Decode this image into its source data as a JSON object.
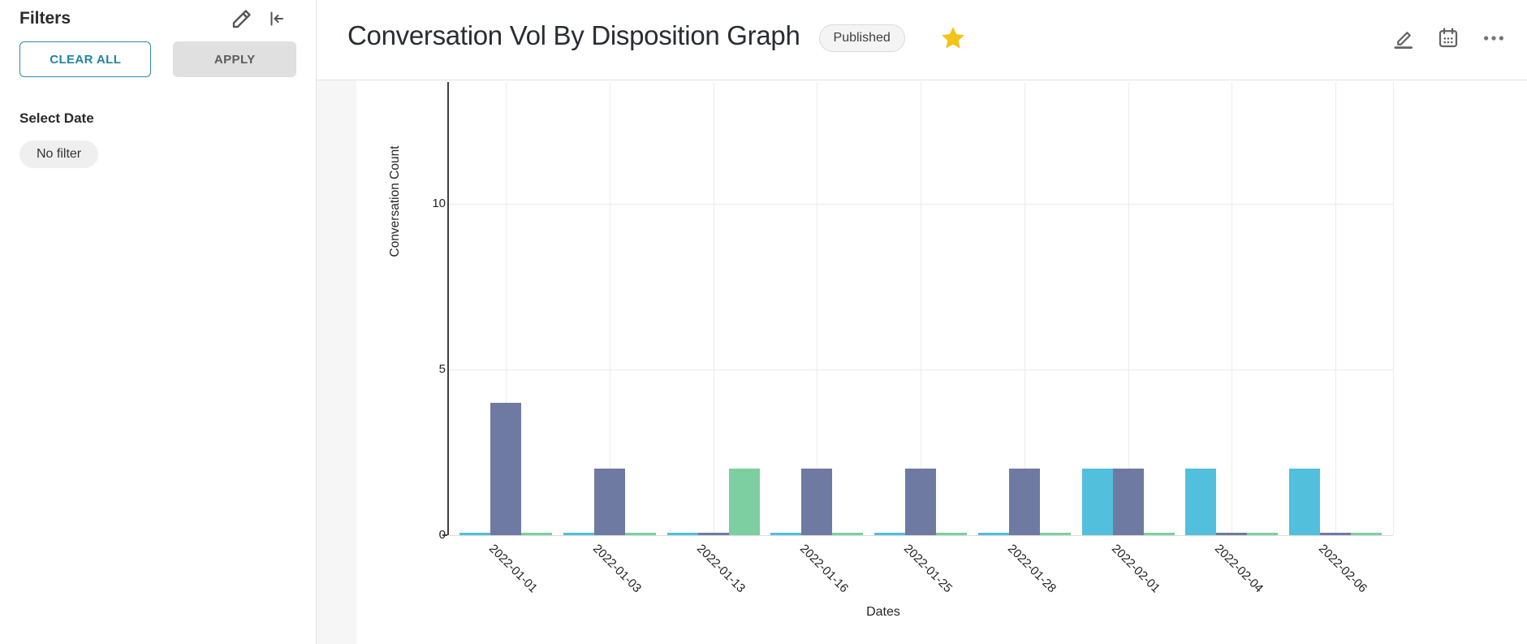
{
  "sidebar": {
    "title": "Filters",
    "clear_all_label": "CLEAR ALL",
    "apply_label": "APPLY",
    "select_date_label": "Select Date",
    "no_filter_label": "No filter",
    "icons": [
      "pencil-icon",
      "collapse-left-icon"
    ]
  },
  "header": {
    "title": "Conversation Vol By Disposition Graph",
    "status_badge": "Published",
    "favorite_icon": "star-icon",
    "action_icons": [
      "edit-pencil-icon",
      "calendar-icon",
      "ellipsis-icon"
    ]
  },
  "colors": {
    "accent_teal": "#2283a0",
    "star_gold": "#f2c318",
    "apply_button_bg": "#e0e0e0",
    "badge_bg": "#f4f4f4",
    "bar_cyan": "#52bfdc",
    "bar_purple": "#6f7aa3",
    "bar_green": "#7dcea0"
  },
  "chart_data": {
    "type": "bar",
    "title": "",
    "xlabel": "Dates",
    "ylabel": "Conversation Count",
    "categories": [
      "2022-01-01",
      "2022-01-03",
      "2022-01-13",
      "2022-01-16",
      "2022-01-25",
      "2022-01-28",
      "2022-02-01",
      "2022-02-04",
      "2022-02-06"
    ],
    "series": [
      {
        "name": "cyan-series",
        "color": "#52bfdc",
        "values": [
          0,
          0,
          0,
          0,
          0,
          0,
          2,
          2,
          2
        ]
      },
      {
        "name": "purple-series",
        "color": "#6f7aa3",
        "values": [
          4,
          2,
          0,
          2,
          2,
          2,
          2,
          0,
          0
        ]
      },
      {
        "name": "green-series",
        "color": "#7dcea0",
        "values": [
          0,
          0,
          2,
          0,
          0,
          0,
          0,
          0,
          0
        ]
      }
    ],
    "yticks": [
      0,
      5,
      10
    ],
    "ylim": [
      0,
      13.7
    ],
    "grid": true,
    "legend": "none"
  }
}
